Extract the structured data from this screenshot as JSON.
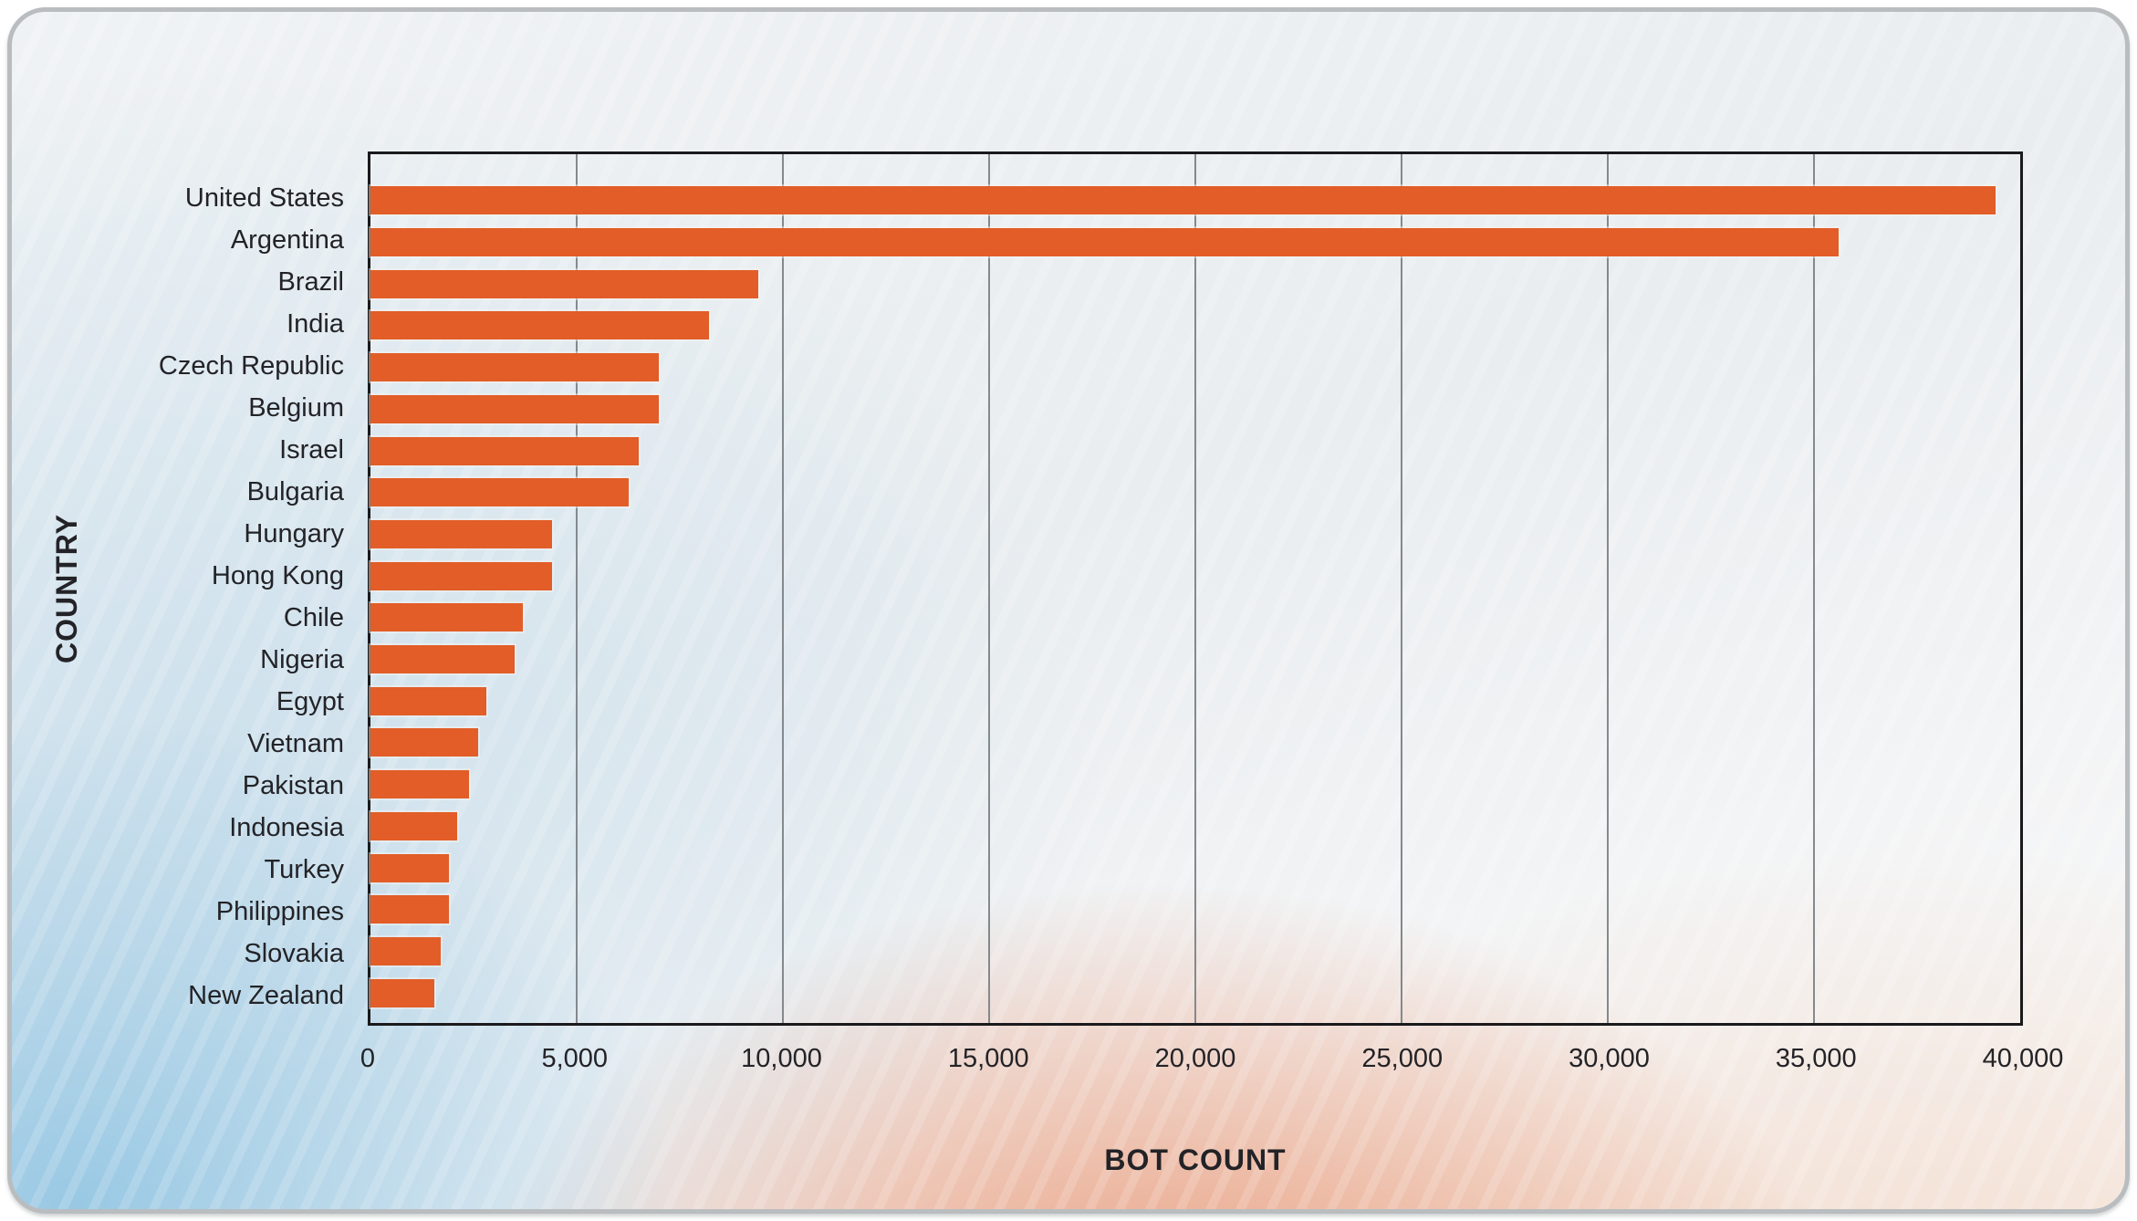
{
  "page": {
    "background": "#ffffff"
  },
  "card": {
    "border_color": "#b9bdc0"
  },
  "chart_data": {
    "type": "bar",
    "orientation": "horizontal",
    "title": "",
    "xlabel": "BOT COUNT",
    "ylabel": "COUNTRY",
    "xlim": [
      0,
      40000
    ],
    "xticks": [
      0,
      5000,
      10000,
      15000,
      20000,
      25000,
      30000,
      35000,
      40000
    ],
    "xtick_labels": [
      "0",
      "5,000",
      "10,000",
      "15,000",
      "20,000",
      "25,000",
      "30,000",
      "35,000",
      "40,000"
    ],
    "grid": "vertical-gridlines-every-5000",
    "legend": "none",
    "categories": [
      "United States",
      "Argentina",
      "Brazil",
      "India",
      "Czech Republic",
      "Belgium",
      "Israel",
      "Bulgaria",
      "Hungary",
      "Hong Kong",
      "Chile",
      "Nigeria",
      "Egypt",
      "Vietnam",
      "Pakistan",
      "Indonesia",
      "Turkey",
      "Philippines",
      "Slovakia",
      "New Zealand"
    ],
    "values": [
      39400,
      35600,
      9400,
      8200,
      7000,
      7000,
      6500,
      6250,
      4400,
      4400,
      3700,
      3500,
      2800,
      2600,
      2400,
      2100,
      1900,
      1900,
      1700,
      1550
    ],
    "bar_color": "#e25d27",
    "text_color": "#232327",
    "gridline_color": "#83898d",
    "plot_border_color": "#1a1a1c"
  }
}
